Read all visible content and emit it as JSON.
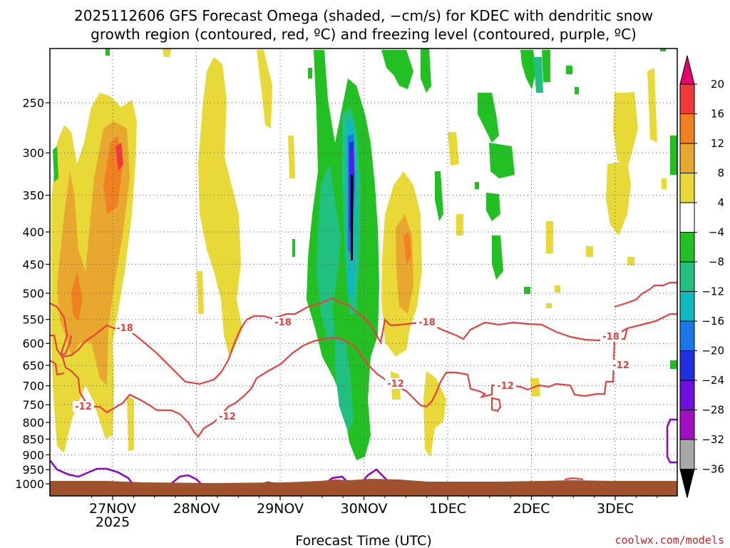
{
  "chart_data": {
    "type": "heatmap",
    "title_lines": [
      "2025112606 GFS Forecast Omega (shaded, −cm/s) for KDEC with dendritic snow",
      "growth region (contoured, red, ºC) and freezing level (contoured, purple, ºC)"
    ],
    "xlabel": "Forecast Time (UTC)",
    "ylabel": "",
    "x_ticks": [
      "27NOV",
      "28NOV",
      "29NOV",
      "30NOV",
      "1DEC",
      "2DEC",
      "3DEC"
    ],
    "x_year_label": "2025",
    "y_ticks": [
      250,
      300,
      350,
      400,
      450,
      500,
      550,
      600,
      650,
      700,
      750,
      800,
      850,
      900,
      950,
      1000
    ],
    "y_tick_labels": [
      "250",
      "300",
      "350",
      "400",
      "450",
      "500",
      "550",
      "600",
      "650",
      "700",
      "750",
      "800",
      "850",
      "900",
      "950",
      "1000"
    ],
    "grid": true,
    "colorbar": {
      "labels": [
        "20",
        "16",
        "12",
        "8",
        "4",
        "−4",
        "−8",
        "−12",
        "−16",
        "−20",
        "−24",
        "−28",
        "−32",
        "−36"
      ],
      "colors": [
        "#e8006e",
        "#ee3a3a",
        "#f08020",
        "#e8a830",
        "#e8d838",
        "#ffffff",
        "#22c022",
        "#22c080",
        "#10b8c0",
        "#1878e8",
        "#2030e0",
        "#7010e0",
        "#a010c0",
        "#a8a8a8",
        "#000000"
      ]
    },
    "contour_colors": {
      "dgz": "#e84040",
      "freezing": "#9000c8",
      "ground": "#a0522d"
    },
    "contour_labels": [
      "-18",
      "-18",
      "-18",
      "-18",
      "-12",
      "-12",
      "-12",
      "-12",
      "-12"
    ],
    "credit": "coolwx.com/models"
  }
}
